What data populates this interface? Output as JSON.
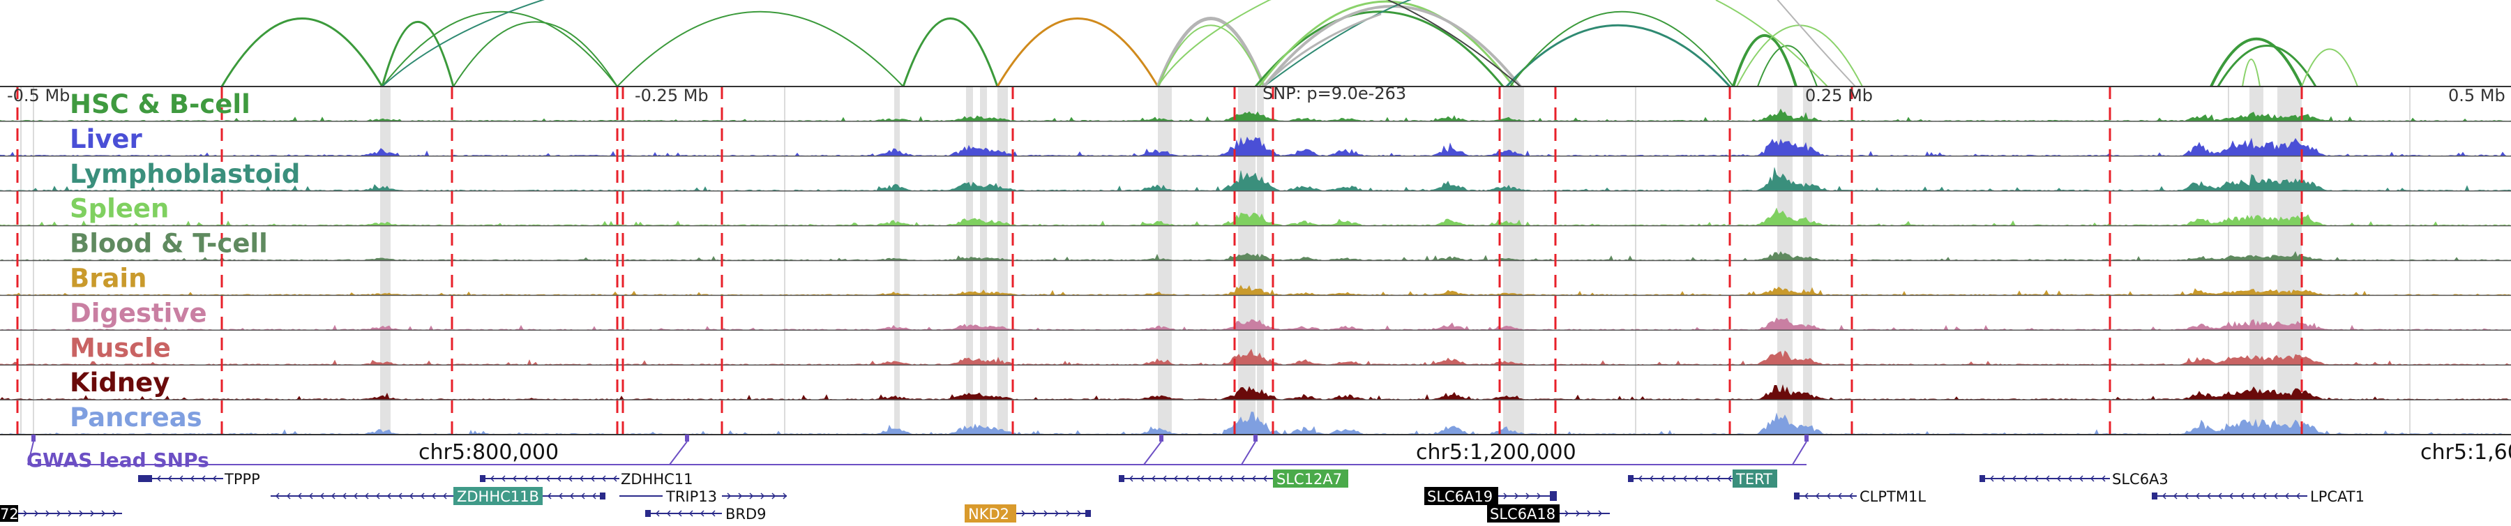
{
  "view": {
    "scale_left": "-0.5 Mb",
    "scale_mid_left": "-0.25 Mb",
    "scale_mid_right": "0.25 Mb",
    "scale_right": "0.5 Mb",
    "snp_label": "SNP: p=9.0e-263",
    "coord_left": "chr5:800,000",
    "coord_mid": "chr5:1,200,000",
    "coord_right": "chr5:1,60"
  },
  "colors": {
    "loop_green": "#3b9a3b",
    "loop_orange": "#d08a1c",
    "loop_light": "#8ad26a",
    "loop_grey": "#b5b5b5",
    "loop_teal": "#2f8a72",
    "red_dash": "#e8202a",
    "highlight": "#e2e2e2",
    "snp_track": "#6c4fc4"
  },
  "tracks": [
    {
      "name": "HSC & B-cell",
      "color": "#3f9a3f"
    },
    {
      "name": "Liver",
      "color": "#4a4fd6"
    },
    {
      "name": "Lymphoblastoid",
      "color": "#3a8f7c"
    },
    {
      "name": "Spleen",
      "color": "#7fd060"
    },
    {
      "name": "Blood & T-cell",
      "color": "#5f8a5f"
    },
    {
      "name": "Brain",
      "color": "#c99a2c"
    },
    {
      "name": "Digestive",
      "color": "#c97fa2"
    },
    {
      "name": "Muscle",
      "color": "#c96363"
    },
    {
      "name": "Kidney",
      "color": "#6a0a0a"
    },
    {
      "name": "Pancreas",
      "color": "#7f9fe0"
    }
  ],
  "snp_track": {
    "name": "GWAS lead SNPs"
  },
  "genes": {
    "tppp": "TPPP",
    "zdhhc11": "ZDHHC11",
    "zdhhc11b": "ZDHHC11B",
    "trip13": "TRIP13",
    "brd9": "BRD9",
    "nkd2": "NKD2",
    "slc12a7": "SLC12A7",
    "slc6a19": "SLC6A19",
    "slc6a18": "SLC6A18",
    "tert": "TERT",
    "clptm1l": "CLPTM1L",
    "slc6a3": "SLC6A3",
    "lpcat1": "LPCAT1",
    "cut72": "72"
  },
  "gene_colors": {
    "strand": "#2a2a8a",
    "zdhhc11b_box": "#3f9a88",
    "nkd2_box": "#d99a2c",
    "slc12a7_box": "#4aaa4a",
    "tert_box": "#3a8f7c",
    "black_box": "#000000"
  }
}
